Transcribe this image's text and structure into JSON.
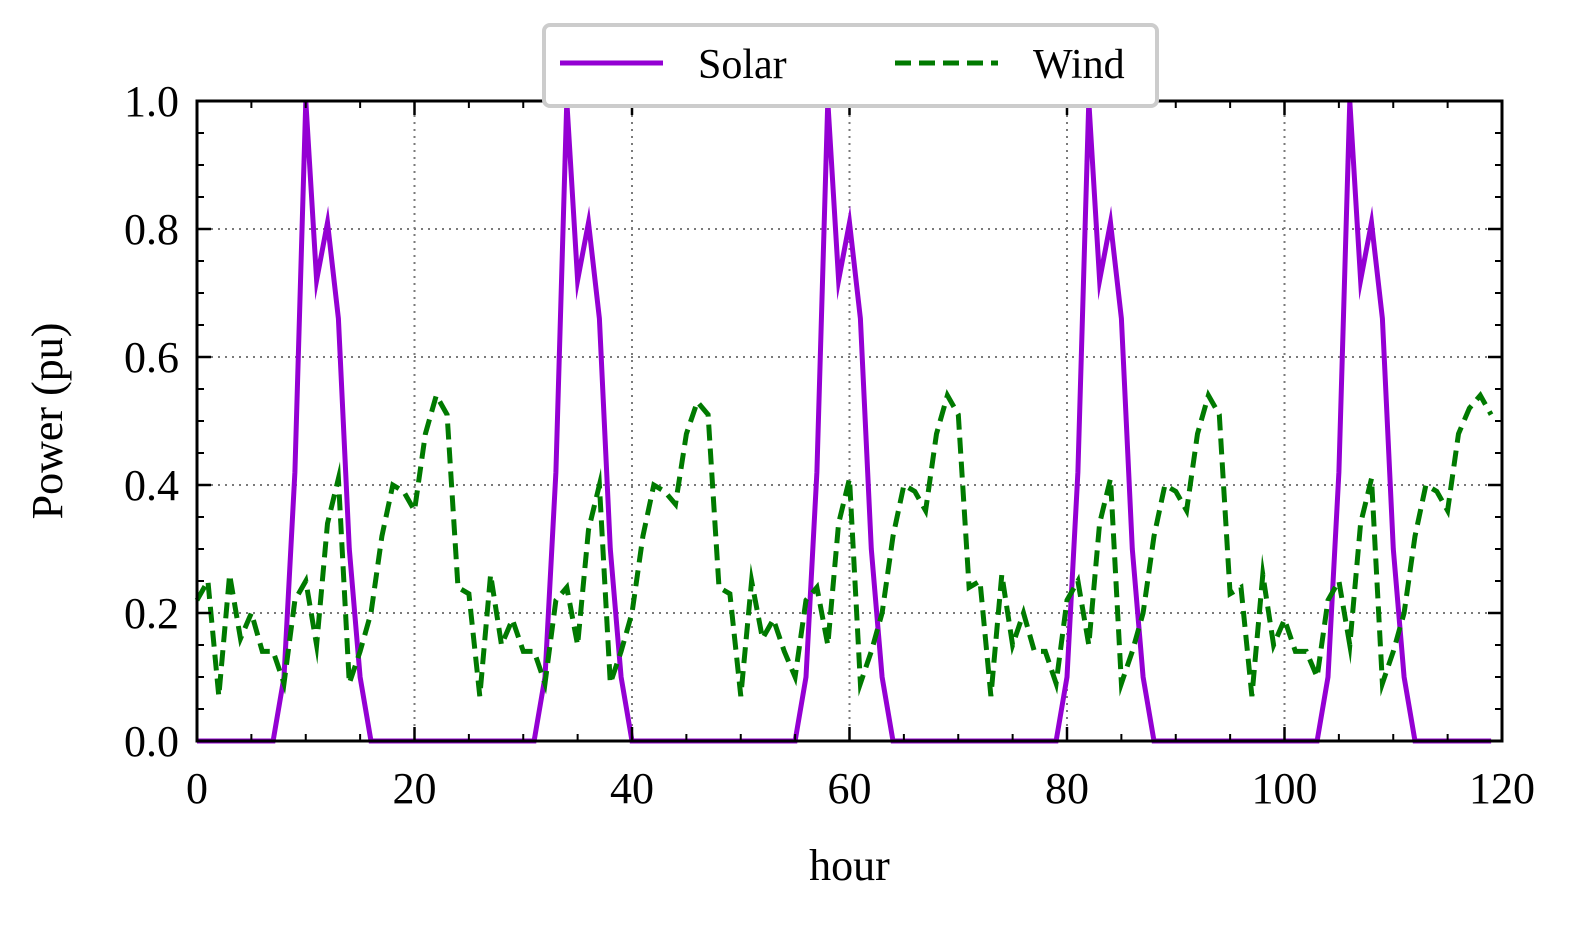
{
  "chart_data": {
    "type": "line",
    "xlabel": "hour",
    "ylabel": "Power (pu)",
    "xlim": [
      0,
      120
    ],
    "ylim": [
      0,
      1.0
    ],
    "xticks": [
      "0",
      "20",
      "40",
      "60",
      "80",
      "100",
      "120"
    ],
    "yticks": [
      "0.0",
      "0.2",
      "0.4",
      "0.6",
      "0.8",
      "1.0"
    ],
    "grid": true,
    "legend_position": "top-center",
    "series": [
      {
        "name": "Solar",
        "color": "#9400d3",
        "style": "solid",
        "x": [
          0,
          1,
          2,
          3,
          4,
          5,
          6,
          7,
          8,
          9,
          10,
          11,
          12,
          13,
          14,
          15,
          16,
          17,
          18,
          19,
          20,
          21,
          22,
          23,
          24,
          25,
          26,
          27,
          28,
          29,
          30,
          31,
          32,
          33,
          34,
          35,
          36,
          37,
          38,
          39,
          40,
          41,
          42,
          43,
          44,
          45,
          46,
          47,
          48,
          49,
          50,
          51,
          52,
          53,
          54,
          55,
          56,
          57,
          58,
          59,
          60,
          61,
          62,
          63,
          64,
          65,
          66,
          67,
          68,
          69,
          70,
          71,
          72,
          73,
          74,
          75,
          76,
          77,
          78,
          79,
          80,
          81,
          82,
          83,
          84,
          85,
          86,
          87,
          88,
          89,
          90,
          91,
          92,
          93,
          94,
          95,
          96,
          97,
          98,
          99,
          100,
          101,
          102,
          103,
          104,
          105,
          106,
          107,
          108,
          109,
          110,
          111,
          112,
          113,
          114,
          115,
          116,
          117,
          118,
          119
        ],
        "values": [
          0,
          0,
          0,
          0,
          0,
          0,
          0,
          0,
          0.1,
          0.42,
          1.0,
          0.72,
          0.81,
          0.66,
          0.3,
          0.1,
          0,
          0,
          0,
          0,
          0,
          0,
          0,
          0,
          0,
          0,
          0,
          0,
          0,
          0,
          0,
          0,
          0.1,
          0.42,
          1.0,
          0.72,
          0.81,
          0.66,
          0.3,
          0.1,
          0,
          0,
          0,
          0,
          0,
          0,
          0,
          0,
          0,
          0,
          0,
          0,
          0,
          0,
          0,
          0,
          0.1,
          0.42,
          1.0,
          0.72,
          0.81,
          0.66,
          0.3,
          0.1,
          0,
          0,
          0,
          0,
          0,
          0,
          0,
          0,
          0,
          0,
          0,
          0,
          0,
          0,
          0,
          0,
          0.1,
          0.42,
          1.0,
          0.72,
          0.81,
          0.66,
          0.3,
          0.1,
          0,
          0,
          0,
          0,
          0,
          0,
          0,
          0,
          0,
          0,
          0,
          0,
          0,
          0,
          0,
          0,
          0.1,
          0.42,
          1.0,
          0.72,
          0.81,
          0.66,
          0.3,
          0.1,
          0,
          0,
          0,
          0,
          0,
          0,
          0,
          0
        ]
      },
      {
        "name": "Wind",
        "color": "#007a00",
        "style": "dashed",
        "x": [
          0,
          1,
          2,
          3,
          4,
          5,
          6,
          7,
          8,
          9,
          10,
          11,
          12,
          13,
          14,
          15,
          16,
          17,
          18,
          19,
          20,
          21,
          22,
          23,
          24,
          25,
          26,
          27,
          28,
          29,
          30,
          31,
          32,
          33,
          34,
          35,
          36,
          37,
          38,
          39,
          40,
          41,
          42,
          43,
          44,
          45,
          46,
          47,
          48,
          49,
          50,
          51,
          52,
          53,
          54,
          55,
          56,
          57,
          58,
          59,
          60,
          61,
          62,
          63,
          64,
          65,
          66,
          67,
          68,
          69,
          70,
          71,
          72,
          73,
          74,
          75,
          76,
          77,
          78,
          79,
          80,
          81,
          82,
          83,
          84,
          85,
          86,
          87,
          88,
          89,
          90,
          91,
          92,
          93,
          94,
          95,
          96,
          97,
          98,
          99,
          100,
          101,
          102,
          103,
          104,
          105,
          106,
          107,
          108,
          109,
          110,
          111,
          112,
          113,
          114,
          115,
          116,
          117,
          118,
          119
        ],
        "values": [
          0.22,
          0.25,
          0.07,
          0.26,
          0.16,
          0.2,
          0.14,
          0.14,
          0.09,
          0.22,
          0.25,
          0.15,
          0.34,
          0.41,
          0.09,
          0.14,
          0.2,
          0.32,
          0.4,
          0.39,
          0.36,
          0.48,
          0.54,
          0.51,
          0.24,
          0.23,
          0.07,
          0.26,
          0.15,
          0.19,
          0.14,
          0.14,
          0.09,
          0.22,
          0.24,
          0.15,
          0.33,
          0.4,
          0.09,
          0.14,
          0.2,
          0.32,
          0.4,
          0.39,
          0.37,
          0.48,
          0.53,
          0.51,
          0.24,
          0.23,
          0.07,
          0.25,
          0.16,
          0.19,
          0.14,
          0.1,
          0.22,
          0.24,
          0.15,
          0.34,
          0.41,
          0.09,
          0.14,
          0.2,
          0.32,
          0.4,
          0.39,
          0.36,
          0.48,
          0.54,
          0.51,
          0.24,
          0.25,
          0.07,
          0.26,
          0.15,
          0.2,
          0.14,
          0.14,
          0.09,
          0.22,
          0.25,
          0.15,
          0.34,
          0.41,
          0.09,
          0.14,
          0.2,
          0.32,
          0.4,
          0.39,
          0.36,
          0.48,
          0.54,
          0.51,
          0.23,
          0.24,
          0.07,
          0.26,
          0.15,
          0.19,
          0.14,
          0.14,
          0.1,
          0.22,
          0.25,
          0.15,
          0.34,
          0.41,
          0.09,
          0.14,
          0.2,
          0.32,
          0.4,
          0.39,
          0.36,
          0.48,
          0.52,
          0.54,
          0.51
        ]
      }
    ]
  }
}
